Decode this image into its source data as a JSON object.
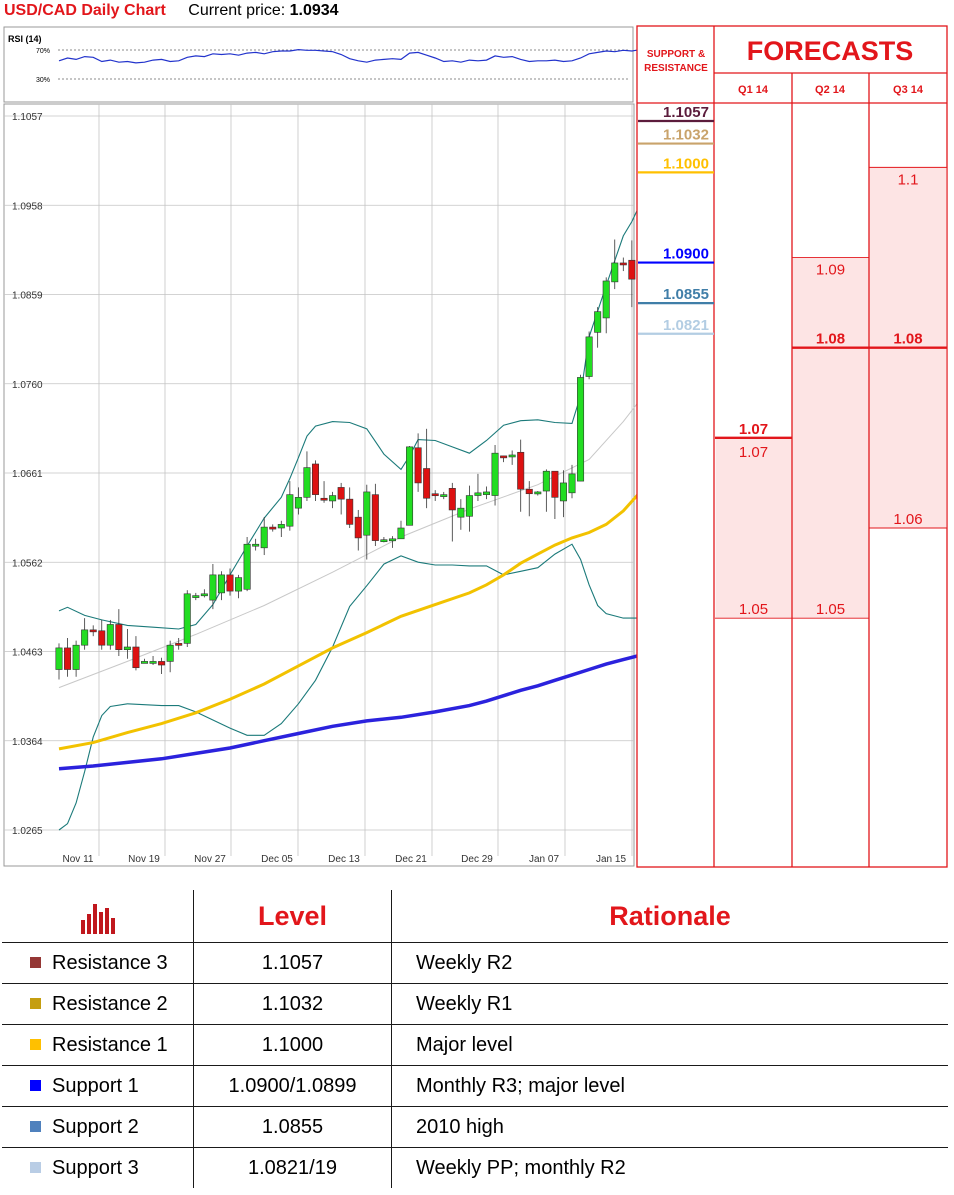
{
  "header": {
    "title": "USD/CAD Daily Chart",
    "price_label": "Current price:",
    "price": "1.0934"
  },
  "rsi": {
    "label": "RSI (14)",
    "levels": [
      "70%",
      "30%"
    ]
  },
  "chart_data": {
    "type": "candlestick",
    "title": "USD/CAD Daily Chart",
    "ylim": [
      1.0265,
      1.1057
    ],
    "yticks": [
      "1.1057",
      "1.0958",
      "1.0859",
      "1.0760",
      "1.0661",
      "1.0562",
      "1.0463",
      "1.0364",
      "1.0265"
    ],
    "xticks": [
      "Nov 11",
      "Nov 19",
      "Nov 27",
      "Dec 05",
      "Dec 13",
      "Dec 21",
      "Dec 29",
      "Jan 07",
      "Jan 15"
    ],
    "grid": true,
    "overlays": [
      "Bollinger bands",
      "50-day moving average (yellow)",
      "200-day moving average (blue)"
    ],
    "candles": [
      [
        1.0443,
        1.0467,
        1.0432,
        1.0472
      ],
      [
        1.0467,
        1.0443,
        1.0435,
        1.0478
      ],
      [
        1.0443,
        1.047,
        1.0435,
        1.0475
      ],
      [
        1.047,
        1.0487,
        1.0465,
        1.05
      ],
      [
        1.0487,
        1.0486,
        1.048,
        1.0492
      ],
      [
        1.0486,
        1.047,
        1.0465,
        1.0498
      ],
      [
        1.047,
        1.0493,
        1.0465,
        1.0498
      ],
      [
        1.0493,
        1.0465,
        1.0458,
        1.051
      ],
      [
        1.0465,
        1.0468,
        1.0455,
        1.0488
      ],
      [
        1.0468,
        1.0445,
        1.0442,
        1.048
      ],
      [
        1.0452,
        1.0452,
        1.045,
        1.0455
      ],
      [
        1.0452,
        1.0452,
        1.0448,
        1.0458
      ],
      [
        1.0452,
        1.0448,
        1.0438,
        1.0456
      ],
      [
        1.0452,
        1.047,
        1.044,
        1.0475
      ],
      [
        1.0472,
        1.047,
        1.0465,
        1.0478
      ],
      [
        1.0472,
        1.0527,
        1.0468,
        1.0531
      ],
      [
        1.0525,
        1.0525,
        1.052,
        1.0528
      ],
      [
        1.0527,
        1.0527,
        1.0523,
        1.0532
      ],
      [
        1.052,
        1.0548,
        1.051,
        1.056
      ],
      [
        1.0528,
        1.0548,
        1.052,
        1.0552
      ],
      [
        1.0548,
        1.053,
        1.0525,
        1.0555
      ],
      [
        1.053,
        1.0545,
        1.0522,
        1.0548
      ],
      [
        1.0532,
        1.0582,
        1.053,
        1.059
      ],
      [
        1.058,
        1.0582,
        1.0575,
        1.0588
      ],
      [
        1.0578,
        1.0601,
        1.057,
        1.0612
      ],
      [
        1.0601,
        1.06,
        1.0596,
        1.0604
      ],
      [
        1.06,
        1.0604,
        1.059,
        1.0608
      ],
      [
        1.0602,
        1.0637,
        1.0597,
        1.0652
      ],
      [
        1.0622,
        1.0634,
        1.0615,
        1.0645
      ],
      [
        1.0634,
        1.0667,
        1.063,
        1.0685
      ],
      [
        1.0671,
        1.0637,
        1.063,
        1.0675
      ],
      [
        1.0633,
        1.0632,
        1.0628,
        1.0652
      ],
      [
        1.063,
        1.0636,
        1.0622,
        1.064
      ],
      [
        1.0645,
        1.0632,
        1.0615,
        1.065
      ],
      [
        1.0632,
        1.0604,
        1.06,
        1.0645
      ],
      [
        1.0612,
        1.0589,
        1.0575,
        1.062
      ],
      [
        1.0592,
        1.064,
        1.0565,
        1.0648
      ],
      [
        1.0637,
        1.0586,
        1.058,
        1.0649
      ],
      [
        1.0585,
        1.0587,
        1.0584,
        1.059
      ],
      [
        1.0588,
        1.0588,
        1.0578,
        1.0591
      ],
      [
        1.0588,
        1.06,
        1.0588,
        1.0608
      ],
      [
        1.0603,
        1.069,
        1.0603,
        1.0691
      ],
      [
        1.0689,
        1.065,
        1.064,
        1.0705
      ],
      [
        1.0666,
        1.0633,
        1.0622,
        1.071
      ],
      [
        1.0638,
        1.0636,
        1.063,
        1.0642
      ],
      [
        1.0637,
        1.0637,
        1.0632,
        1.064
      ],
      [
        1.0644,
        1.062,
        1.0585,
        1.065
      ],
      [
        1.0612,
        1.0622,
        1.0598,
        1.0632
      ],
      [
        1.0613,
        1.0636,
        1.0596,
        1.0647
      ],
      [
        1.0636,
        1.0639,
        1.063,
        1.066
      ],
      [
        1.0637,
        1.064,
        1.0632,
        1.0646
      ],
      [
        1.0636,
        1.0683,
        1.0625,
        1.0692
      ],
      [
        1.068,
        1.0678,
        1.0673,
        1.068
      ],
      [
        1.0679,
        1.0681,
        1.067,
        1.0686
      ],
      [
        1.0684,
        1.0643,
        1.0618,
        1.0698
      ],
      [
        1.0643,
        1.0638,
        1.0613,
        1.0652
      ],
      [
        1.064,
        1.064,
        1.0636,
        1.0641
      ],
      [
        1.0641,
        1.0663,
        1.0618,
        1.0665
      ],
      [
        1.0663,
        1.0634,
        1.061,
        1.0663
      ],
      [
        1.063,
        1.065,
        1.0612,
        1.0664
      ],
      [
        1.0639,
        1.066,
        1.0633,
        1.067
      ],
      [
        1.0652,
        1.0767,
        1.0652,
        1.077
      ],
      [
        1.0768,
        1.0812,
        1.0765,
        1.0818
      ],
      [
        1.0817,
        1.084,
        1.08,
        1.0845
      ],
      [
        1.0833,
        1.0874,
        1.0816,
        1.0878
      ],
      [
        1.0873,
        1.0894,
        1.0865,
        1.092
      ],
      [
        1.0894,
        1.0893,
        1.0885,
        1.09
      ],
      [
        1.0897,
        1.0876,
        1.0845,
        1.0919
      ],
      [
        1.0878,
        1.0945,
        1.0875,
        1.095
      ],
      [
        1.0945,
        1.0928,
        1.0915,
        1.095
      ]
    ],
    "bollinger_upper": [
      [
        0,
        1.0508
      ],
      [
        1,
        1.0512
      ],
      [
        3,
        1.0503
      ],
      [
        5,
        1.0498
      ],
      [
        8,
        1.0492
      ],
      [
        11,
        1.049
      ],
      [
        14,
        1.0488
      ],
      [
        16,
        1.0493
      ],
      [
        18,
        1.0515
      ],
      [
        20,
        1.0548
      ],
      [
        22,
        1.058
      ],
      [
        24,
        1.0611
      ],
      [
        26,
        1.0634
      ],
      [
        27,
        1.0655
      ],
      [
        28,
        1.0678
      ],
      [
        29,
        1.0702
      ],
      [
        30,
        1.0713
      ],
      [
        32,
        1.0718
      ],
      [
        34,
        1.0717
      ],
      [
        36,
        1.071
      ],
      [
        38,
        1.0682
      ],
      [
        40,
        1.0665
      ],
      [
        41,
        1.068
      ],
      [
        42,
        1.0698
      ],
      [
        44,
        1.0697
      ],
      [
        46,
        1.069
      ],
      [
        48,
        1.0683
      ],
      [
        50,
        1.0697
      ],
      [
        52,
        1.0714
      ],
      [
        54,
        1.0719
      ],
      [
        56,
        1.072
      ],
      [
        58,
        1.0717
      ],
      [
        60,
        1.0716
      ],
      [
        61,
        1.0747
      ],
      [
        62,
        1.0812
      ],
      [
        64,
        1.0869
      ],
      [
        66,
        1.0924
      ],
      [
        67,
        1.094
      ],
      [
        68,
        1.096
      ],
      [
        69,
        1.0988
      ]
    ],
    "bollinger_lower": [
      [
        0,
        1.0265
      ],
      [
        1,
        1.0272
      ],
      [
        2,
        1.0295
      ],
      [
        3,
        1.033
      ],
      [
        4,
        1.0368
      ],
      [
        5,
        1.0392
      ],
      [
        6,
        1.0402
      ],
      [
        8,
        1.0405
      ],
      [
        10,
        1.0404
      ],
      [
        12,
        1.0403
      ],
      [
        14,
        1.0403
      ],
      [
        16,
        1.0396
      ],
      [
        18,
        1.0387
      ],
      [
        20,
        1.0378
      ],
      [
        22,
        1.037
      ],
      [
        24,
        1.037
      ],
      [
        26,
        1.0383
      ],
      [
        28,
        1.0405
      ],
      [
        30,
        1.0431
      ],
      [
        32,
        1.0468
      ],
      [
        34,
        1.0513
      ],
      [
        36,
        1.0536
      ],
      [
        38,
        1.056
      ],
      [
        40,
        1.0569
      ],
      [
        42,
        1.0562
      ],
      [
        44,
        1.0559
      ],
      [
        46,
        1.0559
      ],
      [
        48,
        1.0558
      ],
      [
        50,
        1.0558
      ],
      [
        52,
        1.0548
      ],
      [
        54,
        1.0552
      ],
      [
        56,
        1.0556
      ],
      [
        58,
        1.0571
      ],
      [
        60,
        1.0582
      ],
      [
        61,
        1.0565
      ],
      [
        62,
        1.0537
      ],
      [
        63,
        1.0514
      ],
      [
        64,
        1.0505
      ],
      [
        66,
        1.05
      ],
      [
        68,
        1.05
      ],
      [
        69,
        1.0503
      ]
    ],
    "ma50": [
      [
        0,
        1.0355
      ],
      [
        4,
        1.0362
      ],
      [
        8,
        1.0373
      ],
      [
        12,
        1.0383
      ],
      [
        16,
        1.0395
      ],
      [
        20,
        1.041
      ],
      [
        24,
        1.0427
      ],
      [
        28,
        1.0447
      ],
      [
        32,
        1.0467
      ],
      [
        36,
        1.0484
      ],
      [
        40,
        1.0502
      ],
      [
        44,
        1.0515
      ],
      [
        48,
        1.0528
      ],
      [
        50,
        1.0537
      ],
      [
        52,
        1.0548
      ],
      [
        54,
        1.0561
      ],
      [
        56,
        1.0571
      ],
      [
        58,
        1.0581
      ],
      [
        60,
        1.0589
      ],
      [
        62,
        1.0595
      ],
      [
        64,
        1.0604
      ],
      [
        66,
        1.0619
      ],
      [
        68,
        1.064
      ],
      [
        69,
        1.0661
      ]
    ],
    "ma200": [
      [
        0,
        1.0333
      ],
      [
        4,
        1.0336
      ],
      [
        8,
        1.034
      ],
      [
        12,
        1.0344
      ],
      [
        16,
        1.035
      ],
      [
        20,
        1.0356
      ],
      [
        24,
        1.0364
      ],
      [
        28,
        1.0372
      ],
      [
        32,
        1.038
      ],
      [
        36,
        1.0386
      ],
      [
        40,
        1.039
      ],
      [
        44,
        1.0396
      ],
      [
        48,
        1.0403
      ],
      [
        50,
        1.0408
      ],
      [
        52,
        1.0414
      ],
      [
        54,
        1.042
      ],
      [
        56,
        1.0425
      ],
      [
        58,
        1.0431
      ],
      [
        60,
        1.0437
      ],
      [
        62,
        1.0443
      ],
      [
        64,
        1.0449
      ],
      [
        66,
        1.0454
      ],
      [
        68,
        1.0459
      ],
      [
        69,
        1.046
      ]
    ],
    "ma_diagonal_grey": [
      [
        0,
        1.0423
      ],
      [
        8,
        1.0452
      ],
      [
        16,
        1.0482
      ],
      [
        24,
        1.0514
      ],
      [
        32,
        1.0551
      ],
      [
        40,
        1.059
      ],
      [
        48,
        1.0621
      ],
      [
        56,
        1.0648
      ],
      [
        62,
        1.0676
      ],
      [
        66,
        1.0718
      ],
      [
        69,
        1.0755
      ]
    ],
    "rsi_values": [
      56,
      60,
      58,
      62,
      61,
      55,
      57,
      54,
      55,
      53,
      54,
      57,
      58,
      55,
      56,
      61,
      63,
      62,
      66,
      65,
      66,
      64,
      67,
      68,
      66,
      69,
      70,
      70,
      72,
      71,
      71,
      70,
      69,
      65,
      59,
      56,
      54,
      57,
      58,
      59,
      58,
      67,
      68,
      64,
      60,
      55,
      56,
      54,
      57,
      56,
      57,
      63,
      61,
      62,
      58,
      55,
      56,
      56,
      57,
      55,
      56,
      60,
      66,
      68,
      70,
      69,
      71,
      70,
      72,
      70
    ]
  },
  "forecasts": {
    "title": "FORECASTS",
    "sr_header": "SUPPORT & RESISTANCE",
    "quarters": [
      "Q1 14",
      "Q2 14",
      "Q3 14"
    ],
    "sr_levels": [
      {
        "label": "1.1057",
        "value": 1.1057,
        "color": "#5c1c3c"
      },
      {
        "label": "1.1032",
        "value": 1.1032,
        "color": "#c9a36b"
      },
      {
        "label": "1.1000",
        "value": 1.1,
        "color": "#ffc000"
      },
      {
        "label": "1.0900",
        "value": 1.09,
        "color": "#0000ff"
      },
      {
        "label": "1.0855",
        "value": 1.0855,
        "color": "#407ea8"
      },
      {
        "label": "1.0821",
        "value": 1.0821,
        "color": "#b3cde3"
      }
    ],
    "columns": [
      {
        "main": "1.07",
        "high": "1.07",
        "low": "1.05",
        "main_v": 1.07,
        "low_v": 1.05
      },
      {
        "main": "1.08",
        "high": "1.09",
        "low": "1.05",
        "main_v": 1.08,
        "high_v": 1.09,
        "low_v": 1.05
      },
      {
        "main": "1.08",
        "high": "1.1",
        "low": "1.06",
        "main_v": 1.08,
        "high_v": 1.1,
        "low_v": 1.06
      }
    ]
  },
  "levels_table": {
    "headers": [
      "Level",
      "Rationale"
    ],
    "rows": [
      {
        "name": "Resistance 3",
        "level": "1.1057",
        "rationale": "Weekly R2",
        "color": "#953735"
      },
      {
        "name": "Resistance 2",
        "level": "1.1032",
        "rationale": "Weekly R1",
        "color": "#c59e10"
      },
      {
        "name": "Resistance 1",
        "level": "1.1000",
        "rationale": "Major level",
        "color": "#ffc000"
      },
      {
        "name": "Support 1",
        "level": "1.0900/1.0899",
        "rationale": "Monthly R3; major level",
        "color": "#0000ff"
      },
      {
        "name": "Support 2",
        "level": "1.0855",
        "rationale": "2010 high",
        "color": "#4f81bd"
      },
      {
        "name": "Support 3",
        "level": "1.0821/19",
        "rationale": "Weekly PP; monthly R2",
        "color": "#b9cde5"
      }
    ]
  },
  "colors": {
    "bull": "#22dd22",
    "bear": "#dd1111",
    "accent": "#e2161b",
    "forecast_fill": "#fde4e4"
  }
}
